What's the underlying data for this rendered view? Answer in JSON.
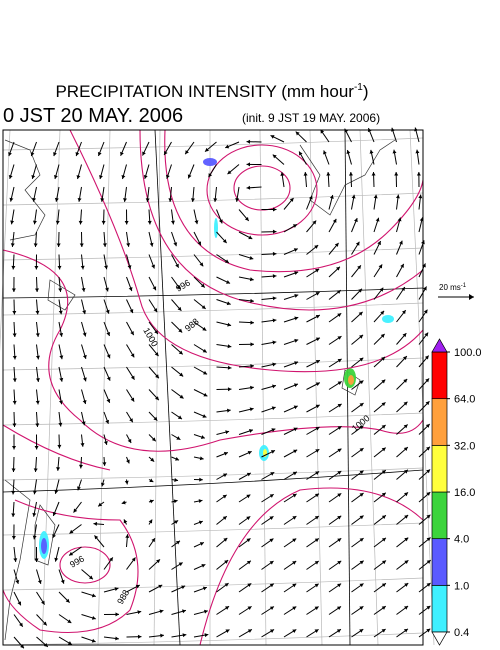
{
  "header": {
    "title": "PRECIPITATION INTENSITY (mm hour",
    "title_superscript": "-1",
    "title_close": ")",
    "valid_time": "0 JST 20 MAY. 2006",
    "init_time": "(init. 9 JST 19 MAY. 2006)"
  },
  "scale_arrow": {
    "label": "20 ms",
    "label_superscript": "-1"
  },
  "isobar_labels": [
    "996",
    "1000",
    "988",
    "1000",
    "996",
    "988"
  ],
  "colorbar": {
    "ticks": [
      {
        "value": 0.4,
        "label": "0.4"
      },
      {
        "value": 1,
        "label": "1.0"
      },
      {
        "value": 4,
        "label": "4.0"
      },
      {
        "value": 16,
        "label": "16.0"
      },
      {
        "value": 32,
        "label": "32.0"
      },
      {
        "value": 64,
        "label": "64.0"
      },
      {
        "value": 100,
        "label": "100.0"
      }
    ],
    "colors": [
      "#3ff0ff",
      "#5a5aff",
      "#3cd43c",
      "#ffff3c",
      "#ffa03c",
      "#ff0000"
    ],
    "over_color": "#a020f0",
    "under_color": "#ffffff"
  }
}
